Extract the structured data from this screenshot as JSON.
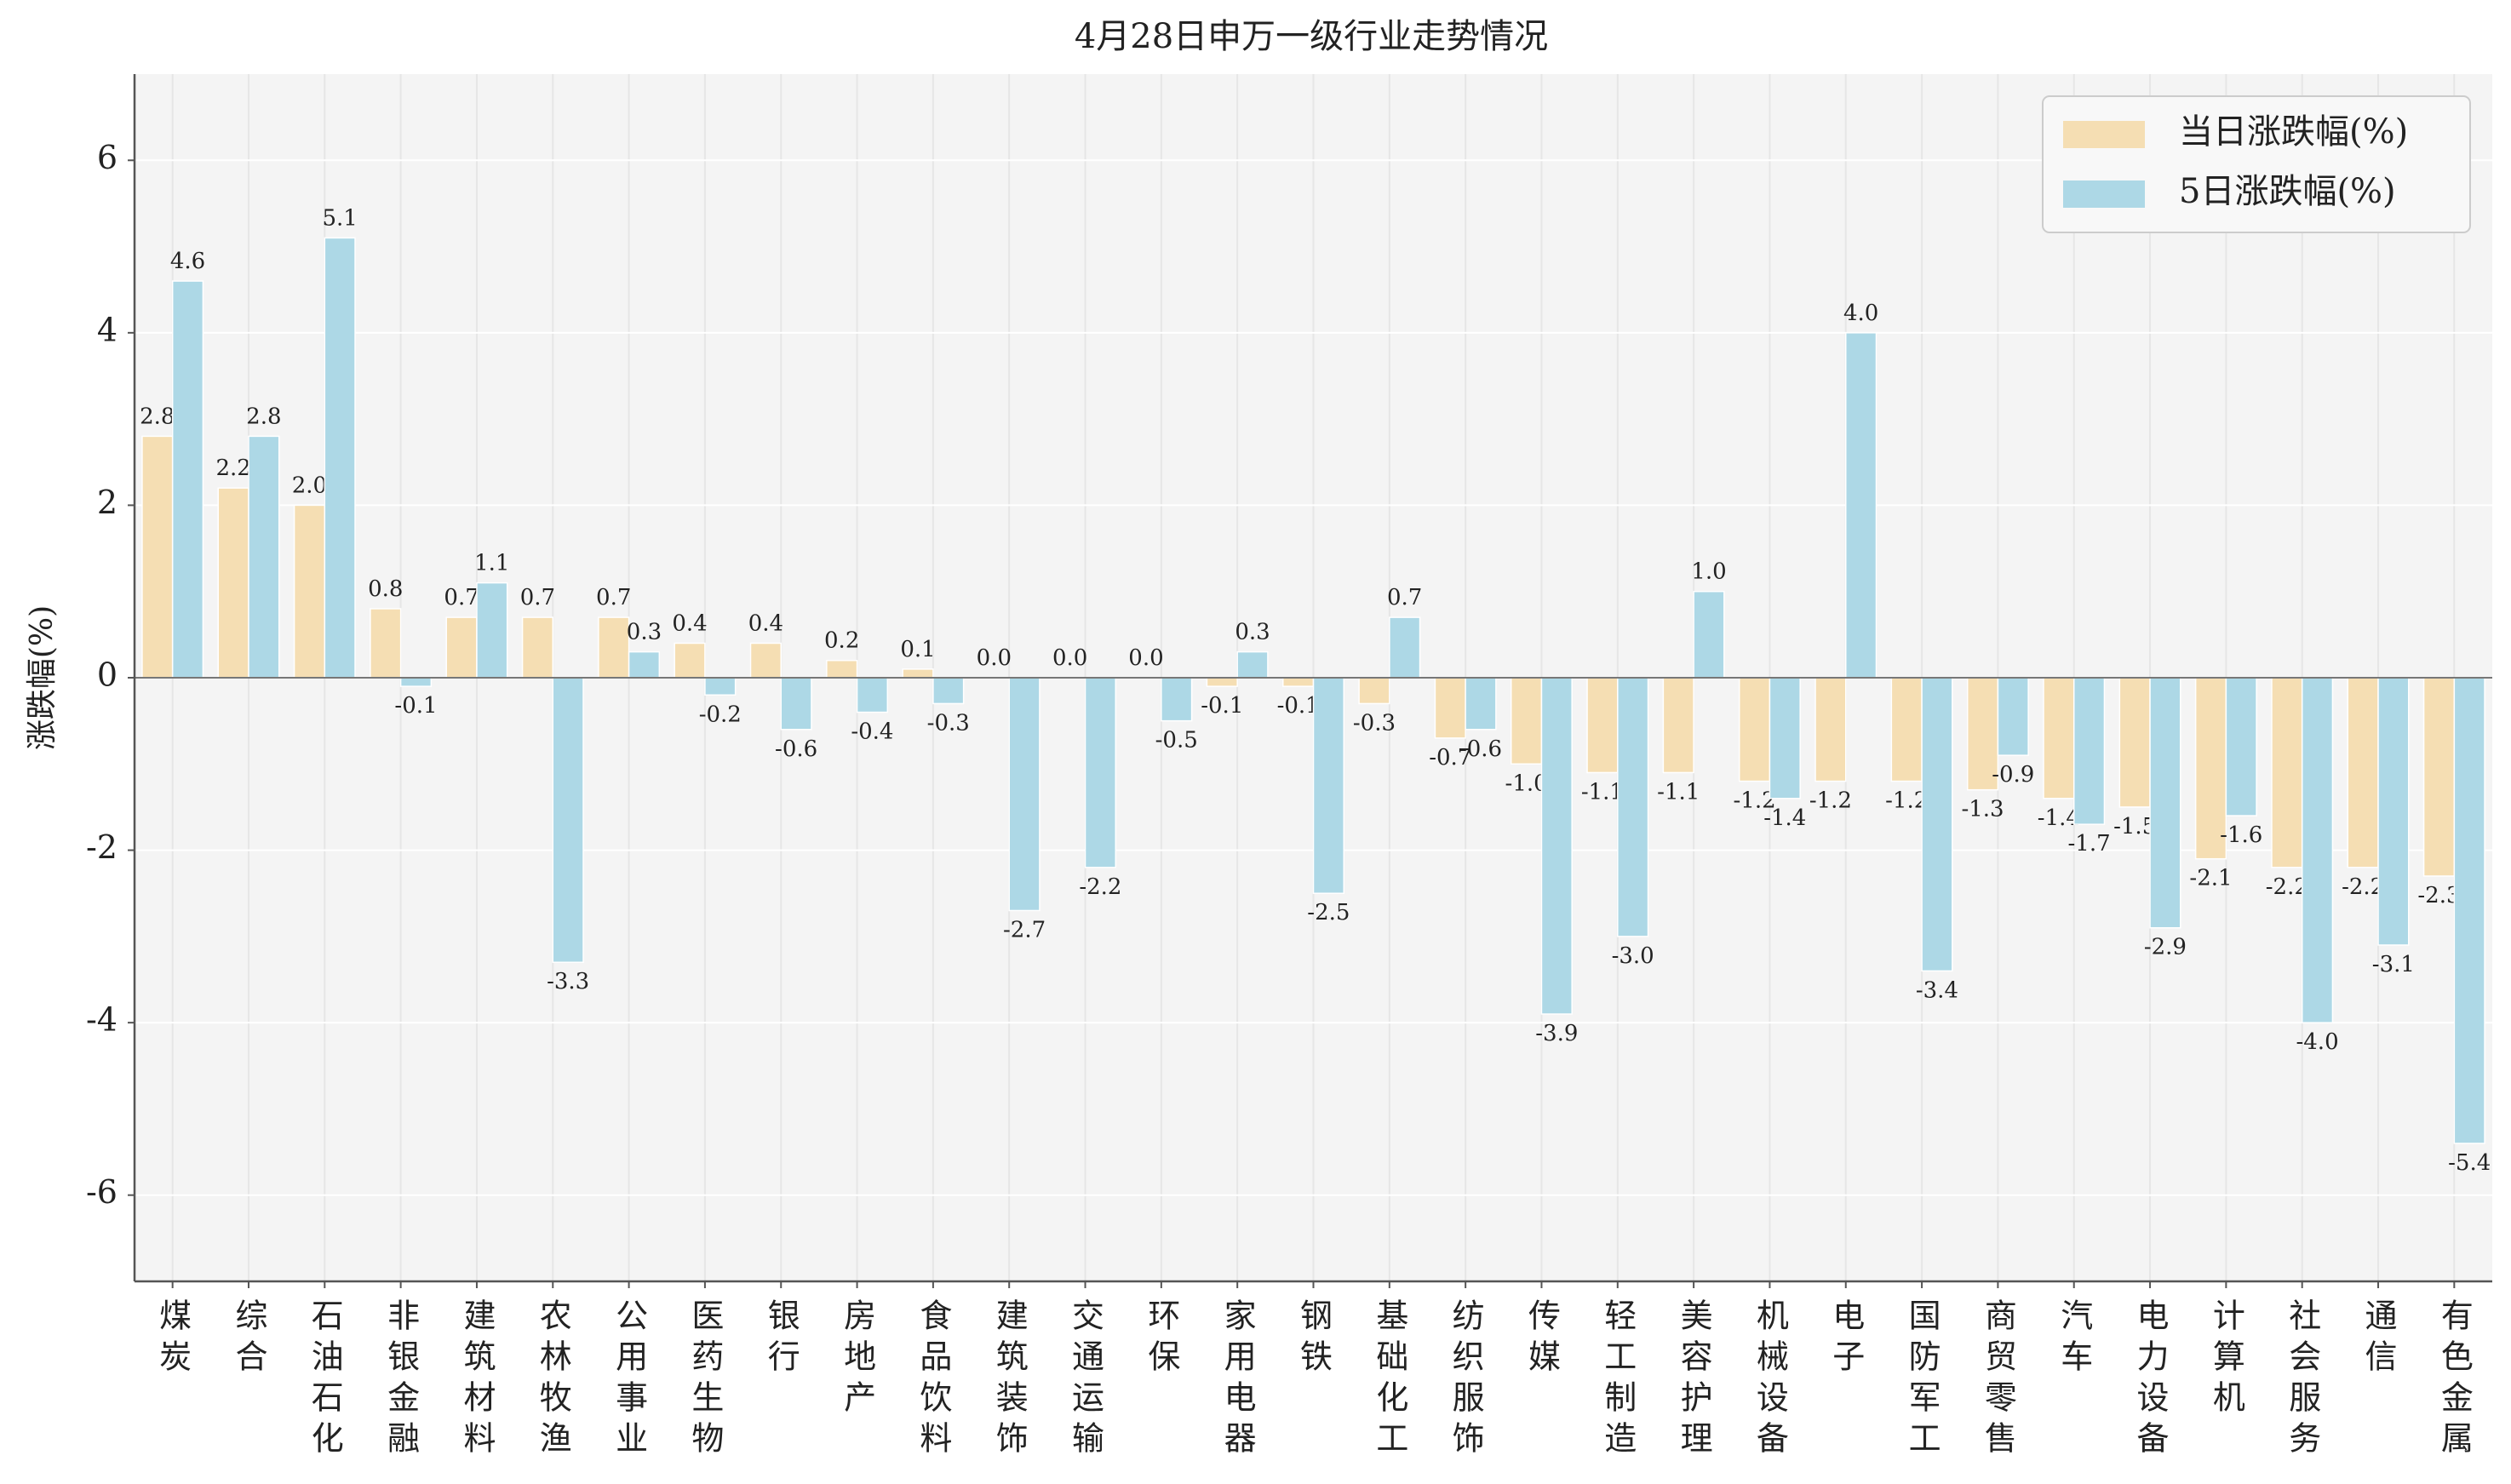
{
  "chart_data": {
    "type": "bar",
    "title": "4月28日申万一级行业走势情况",
    "ylabel": "涨跌幅(%)",
    "categories": [
      "煤炭",
      "综合",
      "石油石化",
      "非银金融",
      "建筑材料",
      "农林牧渔",
      "公用事业",
      "医药生物",
      "银行",
      "房地产",
      "食品饮料",
      "建筑装饰",
      "交通运输",
      "环保",
      "家用电器",
      "钢铁",
      "基础化工",
      "纺织服饰",
      "传媒",
      "轻工制造",
      "美容护理",
      "机械设备",
      "电子",
      "国防军工",
      "商贸零售",
      "汽车",
      "电力设备",
      "计算机",
      "社会服务",
      "通信",
      "有色金属"
    ],
    "series": [
      {
        "name": "当日涨跌幅(%)",
        "color": "#f5deb3",
        "values": [
          2.8,
          2.2,
          2.0,
          0.8,
          0.7,
          0.7,
          0.7,
          0.4,
          0.4,
          0.2,
          0.1,
          0.0,
          0.0,
          0.0,
          -0.1,
          -0.1,
          -0.3,
          -0.7,
          -1.0,
          -1.1,
          -1.1,
          -1.2,
          -1.2,
          -1.2,
          -1.3,
          -1.4,
          -1.5,
          -2.1,
          -2.2,
          -2.2,
          -2.3
        ],
        "value_labels": [
          "2.8",
          "2.2",
          "2.0",
          "0.8",
          "0.7",
          "0.7",
          "0.7",
          "0.4",
          "0.4",
          "0.2",
          "0.1",
          "0.0",
          "0.0",
          "0.0",
          "-0.1",
          "-0.1",
          "-0.3",
          "-0.7",
          "-1.0",
          "-1.1",
          "-1.1",
          "-1.2",
          "-1.2",
          "-1.2",
          "-1.3",
          "-1.4",
          "-1.5",
          "-2.1",
          "-2.2",
          "-2.2",
          "-2.3"
        ]
      },
      {
        "name": "5日涨跌幅(%)",
        "color": "#add8e6",
        "values": [
          4.6,
          2.8,
          5.1,
          -0.1,
          1.1,
          -3.3,
          0.3,
          -0.2,
          -0.6,
          -0.4,
          -0.3,
          -2.7,
          -2.2,
          -0.5,
          0.3,
          -2.5,
          0.7,
          -0.6,
          -3.9,
          -3.0,
          1.0,
          -1.4,
          4.0,
          -3.4,
          -0.9,
          -1.7,
          -2.9,
          -1.6,
          -4.0,
          -3.1,
          -5.4
        ],
        "value_labels": [
          "4.6",
          "2.8",
          "5.1",
          "-0.1",
          "1.1",
          "-3.3",
          "0.3",
          "-0.2",
          "-0.6",
          "-0.4",
          "-0.3",
          "-2.7",
          "-2.2",
          "-0.5",
          "0.3",
          "-2.5",
          "0.7",
          "-0.6",
          "-3.9",
          "-3.0",
          "1.0",
          "-1.4",
          "4.0",
          "-3.4",
          "-0.9",
          "-1.7",
          "-2.9",
          "-1.6",
          "-4.0",
          "-3.1",
          "-5.4"
        ]
      }
    ],
    "ylim": [
      -7,
      7
    ],
    "yticks": [
      -6,
      -4,
      -2,
      0,
      2,
      4,
      6
    ],
    "grid": true,
    "legend": "upper right"
  }
}
